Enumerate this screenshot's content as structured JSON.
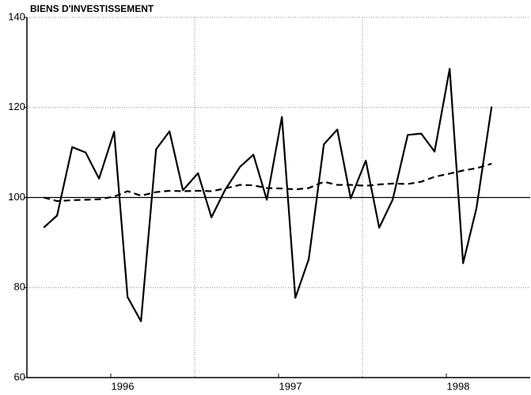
{
  "chart_data": {
    "type": "line",
    "title": "BIENS D'INVESTISSEMENT",
    "x": [
      1996.1,
      1996.18,
      1996.27,
      1996.35,
      1996.43,
      1996.52,
      1996.6,
      1996.68,
      1996.77,
      1996.85,
      1996.93,
      1997.02,
      1997.1,
      1997.18,
      1997.27,
      1997.35,
      1997.43,
      1997.52,
      1997.6,
      1997.68,
      1997.77,
      1997.85,
      1997.93,
      1998.02,
      1998.1,
      1998.18,
      1998.27,
      1998.35,
      1998.43,
      1998.52,
      1998.6,
      1998.68,
      1998.77
    ],
    "series": [
      {
        "color": "#000000",
        "dash": false,
        "values": [
          93.3,
          96,
          111.2,
          110,
          104.2,
          114.6,
          77.9,
          72.5,
          110.7,
          114.7,
          101.6,
          105.4,
          95.6,
          101.6,
          106.8,
          109.5,
          99.5,
          117.9,
          77.7,
          86.3,
          111.8,
          115.1,
          99.8,
          108.2,
          93.3,
          99.5,
          113.9,
          114.2,
          110.2,
          128.6,
          85.4,
          97.7,
          120.2
        ]
      },
      {
        "color": "#000000",
        "dash": true,
        "values": [
          100,
          99.2,
          99.4,
          99.5,
          99.6,
          100.2,
          101.4,
          100.4,
          101.2,
          101.5,
          101.4,
          101.5,
          101.4,
          102,
          102.8,
          102.7,
          102.1,
          102,
          101.8,
          102.1,
          103.5,
          102.8,
          102.8,
          102.6,
          102.9,
          103.1,
          103,
          103.5,
          104.6,
          105.3,
          106,
          106.5,
          107.5
        ]
      }
    ],
    "xlim": [
      1996,
      1999
    ],
    "xticks": [
      {
        "value": 1996.5,
        "label": "1996"
      },
      {
        "value": 1997.5,
        "label": "1997"
      },
      {
        "value": 1998.5,
        "label": "1998"
      }
    ],
    "xgrid": [
      1997,
      1998
    ],
    "ylim": [
      60,
      140
    ],
    "yticks": [
      60,
      80,
      100,
      120,
      140
    ],
    "reference_line": 100,
    "grid": true
  }
}
